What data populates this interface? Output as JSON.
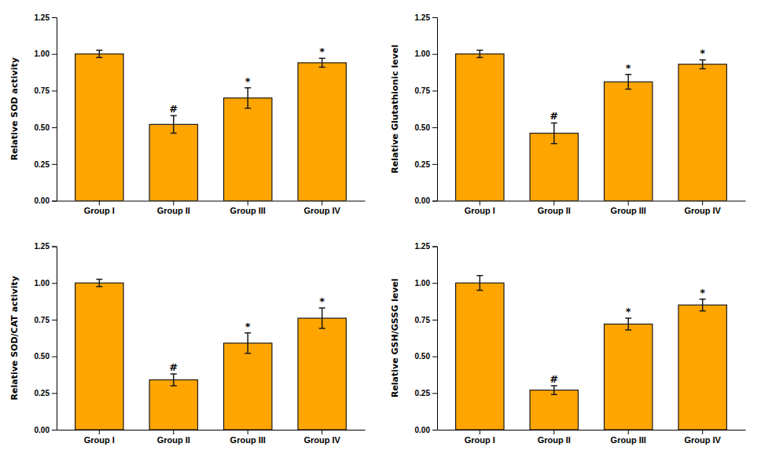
{
  "chart_data": [
    {
      "type": "bar",
      "ylabel": "Relative SOD activity",
      "categories": [
        "Group I",
        "Group II",
        "Group III",
        "Group IV"
      ],
      "values": [
        1.0,
        0.52,
        0.7,
        0.94
      ],
      "errors": [
        0.025,
        0.06,
        0.07,
        0.03
      ],
      "annotations": [
        {
          "category": "Group II",
          "text": "#"
        },
        {
          "category": "Group III",
          "text": "*"
        },
        {
          "category": "Group IV",
          "text": "*"
        }
      ],
      "color": "#FFA500",
      "grid": false,
      "ylim": [
        0,
        1.25
      ],
      "yticks": [
        {
          "value": 0.0,
          "label": "0.00"
        },
        {
          "value": 0.25,
          "label": "0.25"
        },
        {
          "value": 0.5,
          "label": "0.50"
        },
        {
          "value": 0.75,
          "label": "0.75"
        },
        {
          "value": 1.0,
          "label": "1.00"
        },
        {
          "value": 1.25,
          "label": "1.25"
        }
      ]
    },
    {
      "type": "bar",
      "ylabel": "Relative Glutathionic level",
      "categories": [
        "Group I",
        "Group II",
        "Group III",
        "Group IV"
      ],
      "values": [
        1.0,
        0.46,
        0.81,
        0.93
      ],
      "errors": [
        0.025,
        0.07,
        0.05,
        0.03
      ],
      "annotations": [
        {
          "category": "Group II",
          "text": "#"
        },
        {
          "category": "Group III",
          "text": "*"
        },
        {
          "category": "Group IV",
          "text": "*"
        }
      ],
      "color": "#FFA500",
      "grid": false,
      "ylim": [
        0,
        1.25
      ],
      "yticks": [
        {
          "value": 0.0,
          "label": "0.00"
        },
        {
          "value": 0.25,
          "label": "0.25"
        },
        {
          "value": 0.5,
          "label": "0.50"
        },
        {
          "value": 0.75,
          "label": "0.75"
        },
        {
          "value": 1.0,
          "label": "1.00"
        },
        {
          "value": 1.25,
          "label": "1.25"
        }
      ]
    },
    {
      "type": "bar",
      "ylabel": "Relative SOD/CAT activity",
      "categories": [
        "Group I",
        "Group II",
        "Group III",
        "Group IV"
      ],
      "values": [
        1.0,
        0.34,
        0.59,
        0.76
      ],
      "errors": [
        0.025,
        0.04,
        0.07,
        0.07
      ],
      "annotations": [
        {
          "category": "Group II",
          "text": "#"
        },
        {
          "category": "Group III",
          "text": "*"
        },
        {
          "category": "Group IV",
          "text": "*"
        }
      ],
      "color": "#FFA500",
      "grid": false,
      "ylim": [
        0,
        1.25
      ],
      "yticks": [
        {
          "value": 0.0,
          "label": "0.00"
        },
        {
          "value": 0.25,
          "label": "0.25"
        },
        {
          "value": 0.5,
          "label": "0.50"
        },
        {
          "value": 0.75,
          "label": "0.75"
        },
        {
          "value": 1.0,
          "label": "1.00"
        },
        {
          "value": 1.25,
          "label": "1.25"
        }
      ]
    },
    {
      "type": "bar",
      "ylabel": "Relative GSH/GSSG level",
      "categories": [
        "Group I",
        "Group II",
        "Group III",
        "Group IV"
      ],
      "values": [
        1.0,
        0.27,
        0.72,
        0.85
      ],
      "errors": [
        0.05,
        0.03,
        0.04,
        0.04
      ],
      "annotations": [
        {
          "category": "Group II",
          "text": "#"
        },
        {
          "category": "Group III",
          "text": "*"
        },
        {
          "category": "Group IV",
          "text": "*"
        }
      ],
      "color": "#FFA500",
      "grid": false,
      "ylim": [
        0,
        1.25
      ],
      "yticks": [
        {
          "value": 0.0,
          "label": "0.00"
        },
        {
          "value": 0.25,
          "label": "0.25"
        },
        {
          "value": 0.5,
          "label": "0.50"
        },
        {
          "value": 0.75,
          "label": "0.75"
        },
        {
          "value": 1.0,
          "label": "1.00"
        },
        {
          "value": 1.25,
          "label": "1.25"
        }
      ]
    }
  ]
}
